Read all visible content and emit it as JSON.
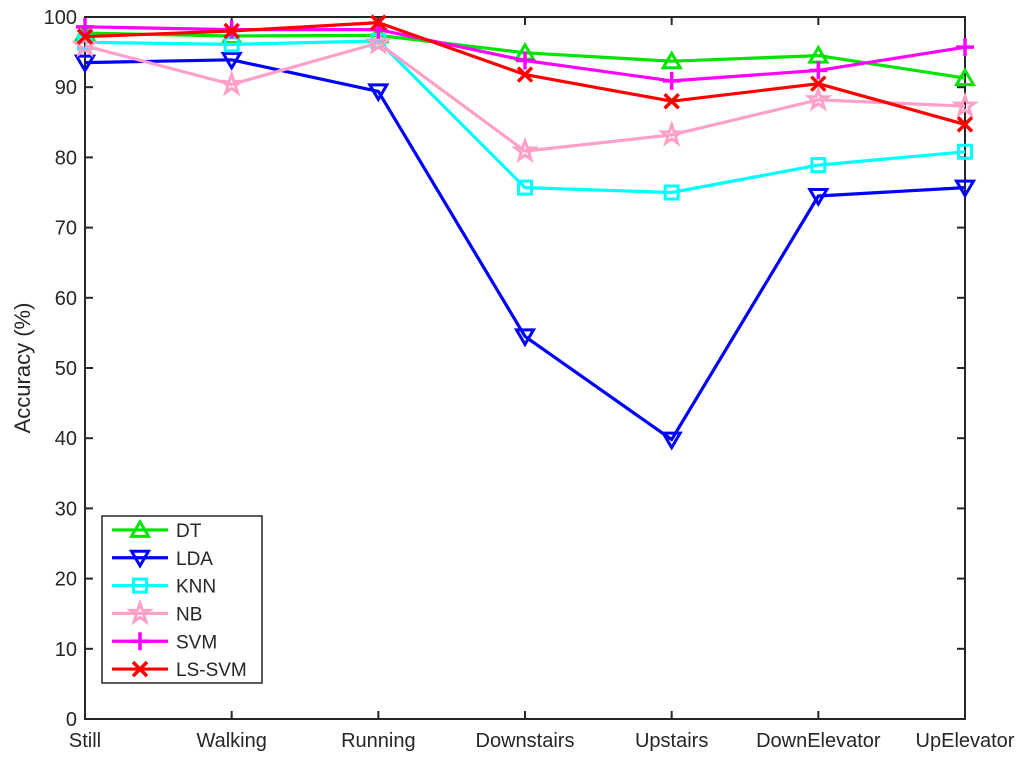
{
  "figure": {
    "background": "#ffffff",
    "axis_color": "#262626"
  },
  "chart_data": {
    "type": "line",
    "title": "",
    "xlabel": "",
    "ylabel": "Accuracy (%)",
    "ylim": [
      0,
      100
    ],
    "ytick_step": 10,
    "ytick_labels": [
      "0",
      "10",
      "20",
      "30",
      "40",
      "50",
      "60",
      "70",
      "80",
      "90",
      "100"
    ],
    "grid": false,
    "legend_position": "lower-left",
    "categories": [
      "Still",
      "Walking",
      "Running",
      "Downstairs",
      "Upstairs",
      "DownElevator",
      "UpElevator"
    ],
    "series": [
      {
        "name": "DT",
        "color": "#00E400",
        "marker": "triangle-up",
        "values": [
          97.7,
          97.3,
          97.4,
          94.9,
          93.7,
          94.5,
          91.3
        ]
      },
      {
        "name": "LDA",
        "color": "#0000FF",
        "marker": "triangle-down",
        "values": [
          93.5,
          93.9,
          89.4,
          54.5,
          39.8,
          74.5,
          75.7
        ]
      },
      {
        "name": "KNN",
        "color": "#00FFFF",
        "marker": "square",
        "values": [
          96.4,
          96.1,
          96.6,
          75.7,
          75.0,
          78.9,
          80.8
        ]
      },
      {
        "name": "NB",
        "color": "#FFA0C8",
        "marker": "star",
        "values": [
          95.9,
          90.4,
          96.3,
          80.9,
          83.2,
          88.2,
          87.3
        ]
      },
      {
        "name": "SVM",
        "color": "#FF00FF",
        "marker": "plus",
        "values": [
          98.6,
          98.2,
          98.2,
          93.8,
          90.9,
          92.4,
          95.7
        ]
      },
      {
        "name": "LS-SVM",
        "color": "#FF0000",
        "marker": "x",
        "values": [
          97.2,
          98.0,
          99.2,
          91.8,
          88.0,
          90.5,
          84.7
        ]
      }
    ]
  }
}
